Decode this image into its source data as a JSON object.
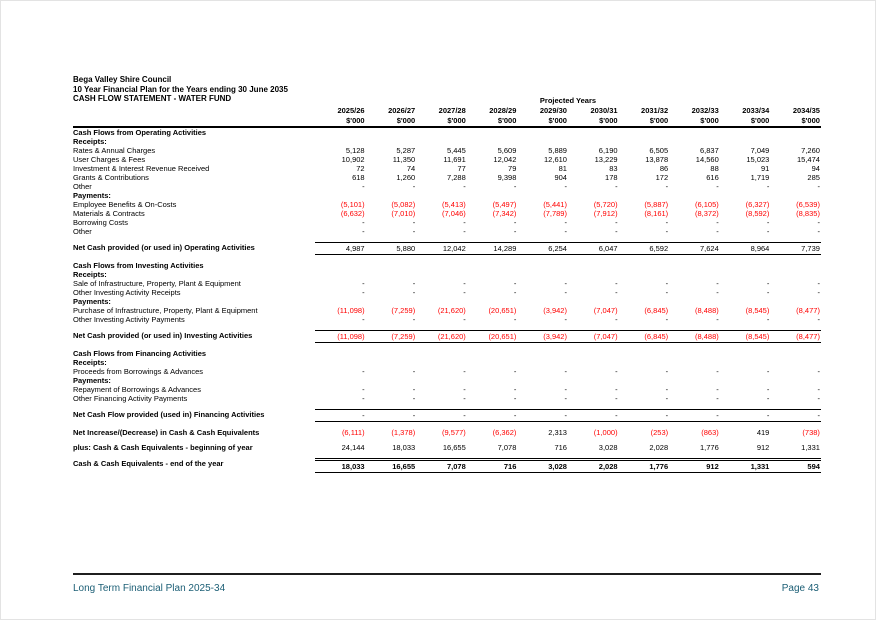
{
  "header": {
    "council": "Bega Valley Shire Council",
    "plan": "10 Year Financial Plan for the Years ending 30 June 2035",
    "statement": "CASH FLOW STATEMENT - WATER FUND",
    "projected_years": "Projected Years",
    "unit": "$'000"
  },
  "columns": [
    "2025/26",
    "2026/27",
    "2027/28",
    "2028/29",
    "2029/30",
    "2030/31",
    "2031/32",
    "2032/33",
    "2033/34",
    "2034/35"
  ],
  "rows": [
    {
      "type": "section",
      "label": "Cash Flows from Operating Activities"
    },
    {
      "type": "sub",
      "label": "Receipts:"
    },
    {
      "type": "item",
      "label": "Rates & Annual Charges",
      "values": [
        "5,128",
        "5,287",
        "5,445",
        "5,609",
        "5,889",
        "6,190",
        "6,505",
        "6,837",
        "7,049",
        "7,260"
      ]
    },
    {
      "type": "item",
      "label": "User Charges & Fees",
      "values": [
        "10,902",
        "11,350",
        "11,691",
        "12,042",
        "12,610",
        "13,229",
        "13,878",
        "14,560",
        "15,023",
        "15,474"
      ]
    },
    {
      "type": "item",
      "label": "Investment & Interest Revenue Received",
      "values": [
        "72",
        "74",
        "77",
        "79",
        "81",
        "83",
        "86",
        "88",
        "91",
        "94"
      ]
    },
    {
      "type": "item",
      "label": "Grants & Contributions",
      "values": [
        "618",
        "1,260",
        "7,288",
        "9,398",
        "904",
        "178",
        "172",
        "616",
        "1,719",
        "285"
      ]
    },
    {
      "type": "item",
      "label": "Other",
      "values": [
        "-",
        "-",
        "-",
        "-",
        "-",
        "-",
        "-",
        "-",
        "-",
        "-"
      ]
    },
    {
      "type": "sub",
      "label": "Payments:"
    },
    {
      "type": "item",
      "label": "Employee Benefits & On-Costs",
      "values": [
        "(5,101)",
        "(5,082)",
        "(5,413)",
        "(5,497)",
        "(5,441)",
        "(5,720)",
        "(5,887)",
        "(6,105)",
        "(6,327)",
        "(6,539)"
      ]
    },
    {
      "type": "item",
      "label": "Materials & Contracts",
      "values": [
        "(6,632)",
        "(7,010)",
        "(7,046)",
        "(7,342)",
        "(7,789)",
        "(7,912)",
        "(8,161)",
        "(8,372)",
        "(8,592)",
        "(8,835)"
      ]
    },
    {
      "type": "item",
      "label": "Borrowing Costs",
      "values": [
        "-",
        "-",
        "-",
        "-",
        "-",
        "-",
        "-",
        "-",
        "-",
        "-"
      ]
    },
    {
      "type": "item",
      "label": "Other",
      "values": [
        "-",
        "-",
        "-",
        "-",
        "-",
        "-",
        "-",
        "-",
        "-",
        "-"
      ]
    },
    {
      "type": "blank"
    },
    {
      "type": "net",
      "label": "Net Cash provided (or used in) Operating Activities",
      "values": [
        "4,987",
        "5,880",
        "12,042",
        "14,289",
        "6,254",
        "6,047",
        "6,592",
        "7,624",
        "8,964",
        "7,739"
      ]
    },
    {
      "type": "blank"
    },
    {
      "type": "section",
      "label": "Cash Flows from Investing Activities"
    },
    {
      "type": "sub",
      "label": "Receipts:"
    },
    {
      "type": "item",
      "label": "Sale of Infrastructure, Property, Plant & Equipment",
      "values": [
        "-",
        "-",
        "-",
        "-",
        "-",
        "-",
        "-",
        "-",
        "-",
        "-"
      ]
    },
    {
      "type": "item",
      "label": "Other Investing Activity Receipts",
      "values": [
        "-",
        "-",
        "-",
        "-",
        "-",
        "-",
        "-",
        "-",
        "-",
        "-"
      ]
    },
    {
      "type": "sub",
      "label": "Payments:"
    },
    {
      "type": "item",
      "label": "Purchase of Infrastructure, Property, Plant & Equipment",
      "values": [
        "(11,098)",
        "(7,259)",
        "(21,620)",
        "(20,651)",
        "(3,942)",
        "(7,047)",
        "(6,845)",
        "(8,488)",
        "(8,545)",
        "(8,477)"
      ]
    },
    {
      "type": "item",
      "label": "Other Investing Activity Payments",
      "values": [
        "-",
        "-",
        "-",
        "-",
        "-",
        "-",
        "-",
        "-",
        "-",
        "-"
      ]
    },
    {
      "type": "blank"
    },
    {
      "type": "net",
      "label": "Net Cash provided (or used in) Investing Activities",
      "values": [
        "(11,098)",
        "(7,259)",
        "(21,620)",
        "(20,651)",
        "(3,942)",
        "(7,047)",
        "(6,845)",
        "(8,488)",
        "(8,545)",
        "(8,477)"
      ]
    },
    {
      "type": "blank"
    },
    {
      "type": "section",
      "label": "Cash Flows from Financing Activities"
    },
    {
      "type": "sub",
      "label": "Receipts:"
    },
    {
      "type": "item",
      "label": "Proceeds from Borrowings & Advances",
      "values": [
        "-",
        "-",
        "-",
        "-",
        "-",
        "-",
        "-",
        "-",
        "-",
        "-"
      ]
    },
    {
      "type": "sub",
      "label": "Payments:"
    },
    {
      "type": "item",
      "label": "Repayment of Borrowings & Advances",
      "values": [
        "-",
        "-",
        "-",
        "-",
        "-",
        "-",
        "-",
        "-",
        "-",
        "-"
      ]
    },
    {
      "type": "item",
      "label": "Other Financing Activity Payments",
      "values": [
        "-",
        "-",
        "-",
        "-",
        "-",
        "-",
        "-",
        "-",
        "-",
        "-"
      ]
    },
    {
      "type": "blank"
    },
    {
      "type": "net",
      "label": "Net Cash Flow provided (used in) Financing Activities",
      "values": [
        "-",
        "-",
        "-",
        "-",
        "-",
        "-",
        "-",
        "-",
        "-",
        "-"
      ]
    },
    {
      "type": "blank"
    },
    {
      "type": "boldrow",
      "label": "Net Increase/(Decrease) in Cash & Cash Equivalents",
      "values": [
        "(6,111)",
        "(1,378)",
        "(9,577)",
        "(6,362)",
        "2,313",
        "(1,000)",
        "(253)",
        "(863)",
        "419",
        "(738)"
      ]
    },
    {
      "type": "blank"
    },
    {
      "type": "boldrow",
      "label": "plus: Cash & Cash Equivalents - beginning of year",
      "values": [
        "24,144",
        "18,033",
        "16,655",
        "7,078",
        "716",
        "3,028",
        "2,028",
        "1,776",
        "912",
        "1,331"
      ]
    },
    {
      "type": "blank"
    },
    {
      "type": "total",
      "label": "Cash & Cash Equivalents - end of the year",
      "values": [
        "18,033",
        "16,655",
        "7,078",
        "716",
        "3,028",
        "2,028",
        "1,776",
        "912",
        "1,331",
        "594"
      ]
    }
  ],
  "footer": {
    "left": "Long Term Financial Plan 2025-34",
    "right": "Page 43"
  },
  "colors": {
    "negative": "#ff0000",
    "footer_text": "#1b5e75"
  }
}
